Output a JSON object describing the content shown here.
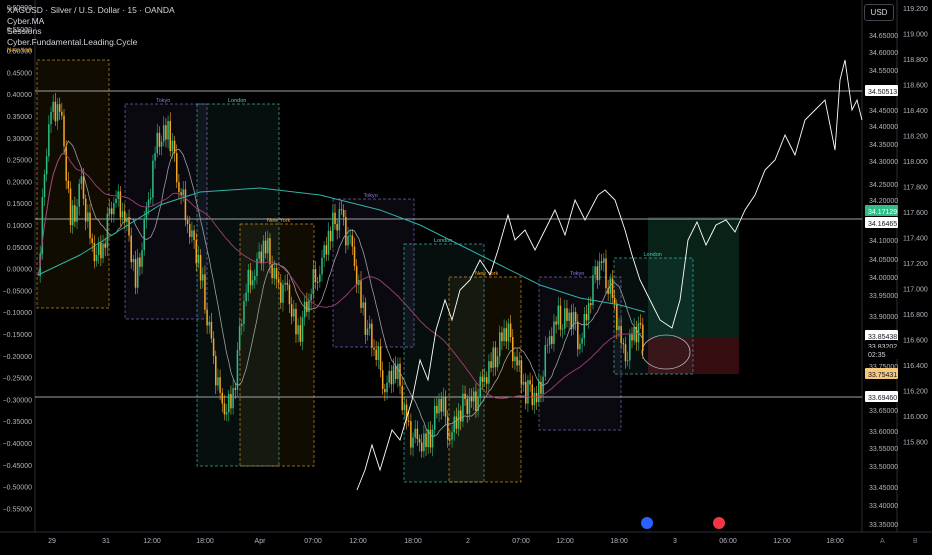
{
  "legend": {
    "symbol_line": "XAGUSD · Silver / U.S. Dollar · 15 · OANDA",
    "indicators": [
      "Cyber.MA",
      "Sessions",
      "Cyber.Fundamental.Leading.Cycle"
    ],
    "session_top": "New York"
  },
  "currency_button": "USD",
  "left_axis_ticks": [
    "0.60000",
    "0.55000",
    "0.50000",
    "0.45000",
    "0.40000",
    "0.35000",
    "0.30000",
    "0.25000",
    "0.20000",
    "0.15000",
    "0.10000",
    "0.05000",
    "0.00000",
    "−0.05000",
    "−0.10000",
    "−0.15000",
    "−0.20000",
    "−0.25000",
    "−0.30000",
    "−0.35000",
    "−0.40000",
    "−0.45000",
    "−0.50000",
    "−0.55000"
  ],
  "right_axis_ticks": [
    "119.200",
    "119.000",
    "118.800",
    "118.600",
    "118.400",
    "118.200",
    "118.000",
    "117.800",
    "117.600",
    "117.400",
    "117.200",
    "117.000",
    "116.800",
    "116.600",
    "116.400",
    "116.200",
    "116.000",
    "115.800"
  ],
  "price_axis_ticks": [
    "34.65000",
    "34.60000",
    "34.55000",
    "34.45000",
    "34.40000",
    "34.35000",
    "34.30000",
    "34.25000",
    "34.20000",
    "34.10000",
    "34.05000",
    "34.00000",
    "33.95000",
    "33.90000",
    "33.80000",
    "33.75000",
    "33.65000",
    "33.60000",
    "33.55000",
    "33.50000",
    "33.45000",
    "33.40000",
    "33.35000"
  ],
  "price_labels": [
    {
      "text": "34.50513",
      "bg": "#ffffff",
      "fg": "#131722"
    },
    {
      "text": "34.17129",
      "bg": "#2ebd85",
      "fg": "#ffffff"
    },
    {
      "text": "34.16465",
      "bg": "#ffffff",
      "fg": "#131722"
    },
    {
      "text": "33.85438",
      "bg": "#ffffff",
      "fg": "#131722"
    },
    {
      "text": "33.83202",
      "bg": "#000000",
      "fg": "#d1d4dc"
    },
    {
      "text": "02:35",
      "bg": "#000000",
      "fg": "#d1d4dc"
    },
    {
      "text": "33.75431",
      "bg": "#f7c97e",
      "fg": "#131722"
    },
    {
      "text": "33.69460",
      "bg": "#ffffff",
      "fg": "#131722"
    }
  ],
  "time_axis_labels": [
    "29",
    "31",
    "12:00",
    "18:00",
    "Apr",
    "07:00",
    "12:00",
    "18:00",
    "2",
    "07:00",
    "12:00",
    "18:00",
    "3",
    "06:00",
    "12:00",
    "18:00"
  ],
  "sessions": [
    {
      "label": "New York",
      "color": "#f5a623"
    },
    {
      "label": "Tokyo",
      "color": "#8c7ae6"
    },
    {
      "label": "London",
      "color": "#4ecdc4"
    },
    {
      "label": "New York",
      "color": "#f5a623"
    },
    {
      "label": "Tokyo",
      "color": "#8c7ae6"
    },
    {
      "label": "London",
      "color": "#4ecdc4"
    },
    {
      "label": "New York",
      "color": "#f5a623"
    },
    {
      "label": "Tokyo",
      "color": "#8c7ae6"
    },
    {
      "label": "London",
      "color": "#4ecdc4"
    }
  ],
  "colors": {
    "background": "#000000",
    "candle_up": "#2ebd85",
    "candle_down": "#f5a623",
    "ma_teal": "#2fb3a5",
    "ma_purple": "#a0407a",
    "ma_gray": "#9e9e9e",
    "cycle_line": "#ffffff"
  },
  "axis_corner": {
    "left": "A",
    "right": "B"
  }
}
